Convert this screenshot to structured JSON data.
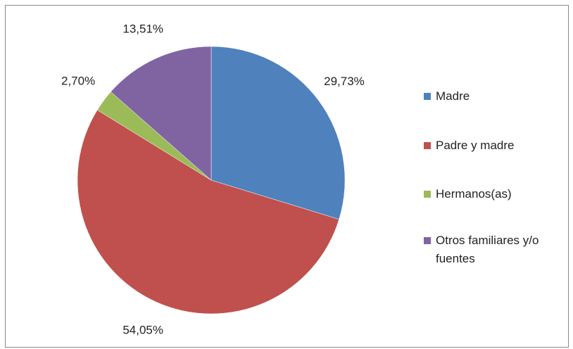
{
  "chart_data": {
    "type": "pie",
    "categories": [
      "Madre",
      "Padre y madre",
      "Hermanos(as)",
      "Otros familiares y/o fuentes"
    ],
    "values": [
      29.73,
      54.05,
      2.7,
      13.51
    ],
    "value_labels": [
      "29,73%",
      "54,05%",
      "2,70%",
      "13,51%"
    ],
    "colors": [
      "#4f81bd",
      "#c0504d",
      "#9bbb59",
      "#8064a2"
    ],
    "legend": "right"
  }
}
